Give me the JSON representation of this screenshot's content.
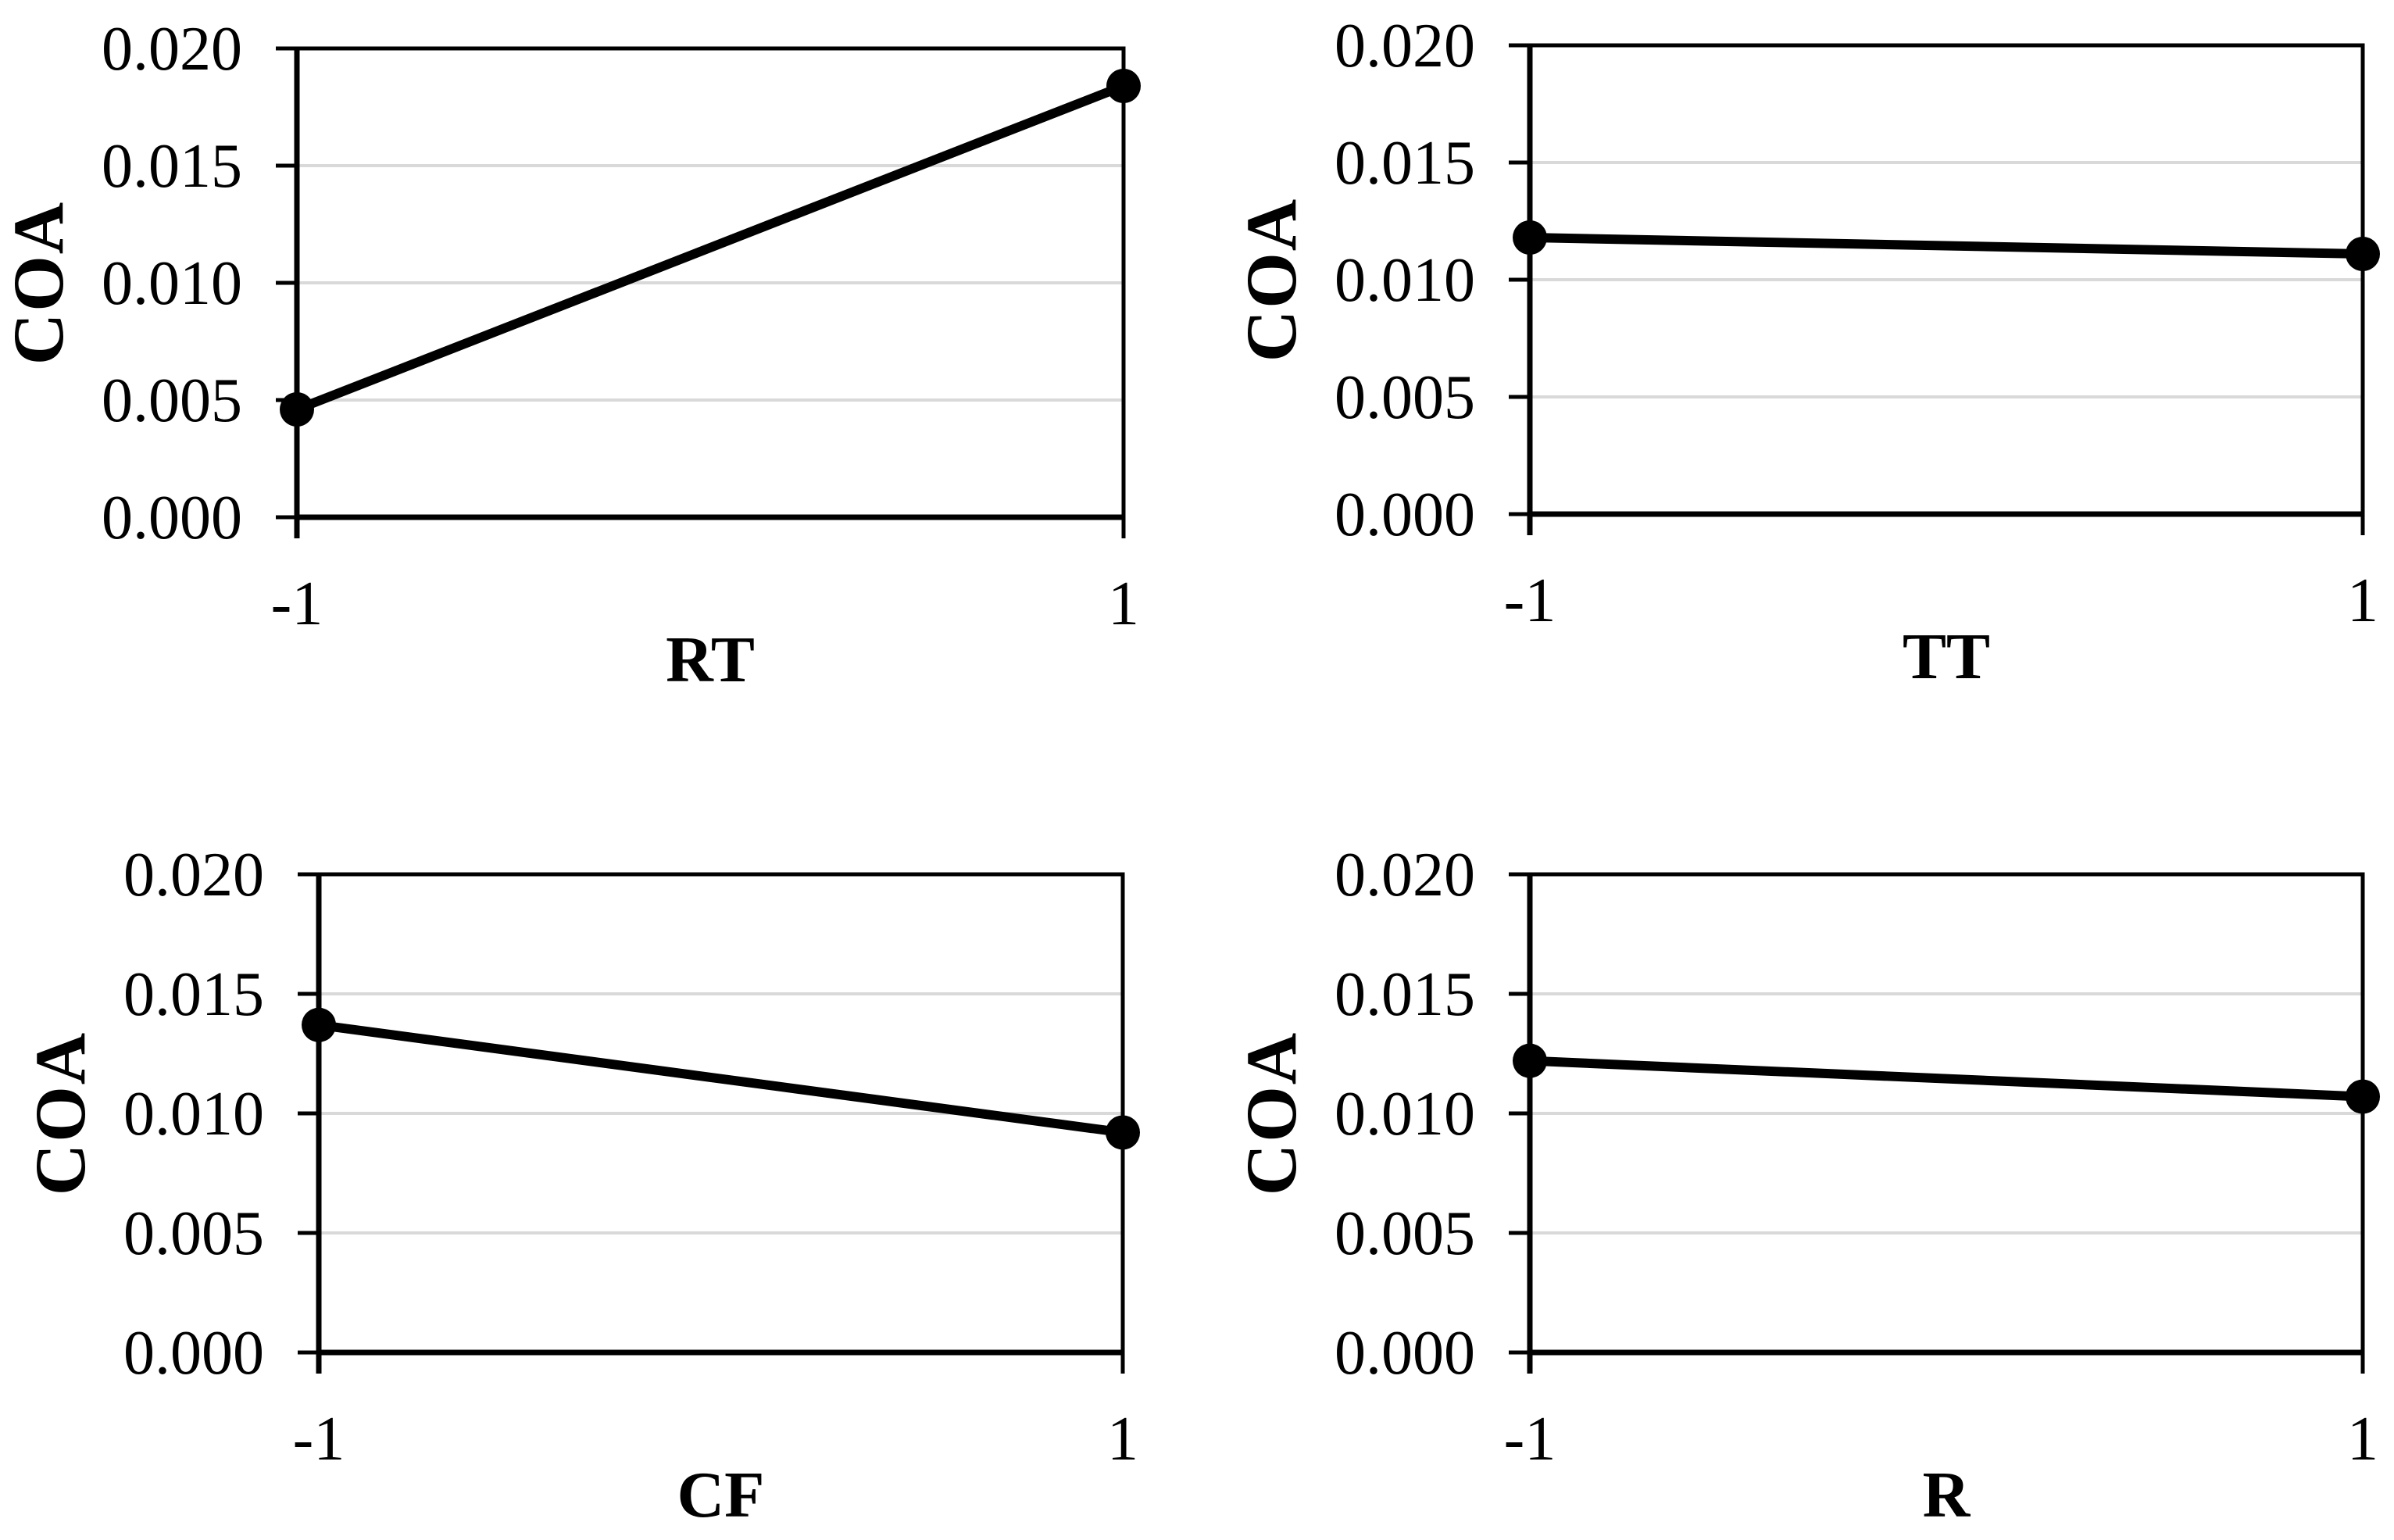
{
  "colors": {
    "line": "#000000",
    "marker": "#000000",
    "gridline": "#d9d9d9",
    "axis": "#000000",
    "text": "#000000",
    "background": "#ffffff"
  },
  "chart_data": [
    {
      "type": "line",
      "position": "top-left",
      "ylabel": "COA",
      "xlabel": "RT",
      "x": [
        -1,
        1
      ],
      "values": [
        0.0046,
        0.0184
      ],
      "xtick_labels": [
        "-1",
        "1"
      ],
      "yticks": [
        0,
        0.005,
        0.01,
        0.015,
        0.02
      ],
      "ytick_labels": [
        "0.000",
        "0.005",
        "0.010",
        "0.015",
        "0.020"
      ],
      "ylim": [
        0,
        0.02
      ],
      "grid": true,
      "legend": false
    },
    {
      "type": "line",
      "position": "top-right",
      "ylabel": "COA",
      "xlabel": "TT",
      "x": [
        -1,
        1
      ],
      "values": [
        0.0118,
        0.0111
      ],
      "xtick_labels": [
        "-1",
        "1"
      ],
      "yticks": [
        0,
        0.005,
        0.01,
        0.015,
        0.02
      ],
      "ytick_labels": [
        "0.000",
        "0.005",
        "0.010",
        "0.015",
        "0.020"
      ],
      "ylim": [
        0,
        0.02
      ],
      "grid": true,
      "legend": false
    },
    {
      "type": "line",
      "position": "bottom-left",
      "ylabel": "COA",
      "xlabel": "CF",
      "x": [
        -1,
        1
      ],
      "values": [
        0.0137,
        0.0092
      ],
      "xtick_labels": [
        "-1",
        "1"
      ],
      "yticks": [
        0,
        0.005,
        0.01,
        0.015,
        0.02
      ],
      "ytick_labels": [
        "0.000",
        "0.005",
        "0.010",
        "0.015",
        "0.020"
      ],
      "ylim": [
        0,
        0.02
      ],
      "grid": true,
      "legend": false
    },
    {
      "type": "line",
      "position": "bottom-right",
      "ylabel": "COA",
      "xlabel": "R",
      "x": [
        -1,
        1
      ],
      "values": [
        0.0122,
        0.0107
      ],
      "xtick_labels": [
        "-1",
        "1"
      ],
      "yticks": [
        0,
        0.005,
        0.01,
        0.015,
        0.02
      ],
      "ytick_labels": [
        "0.000",
        "0.005",
        "0.010",
        "0.015",
        "0.020"
      ],
      "ylim": [
        0,
        0.02
      ],
      "grid": true,
      "legend": false
    }
  ]
}
